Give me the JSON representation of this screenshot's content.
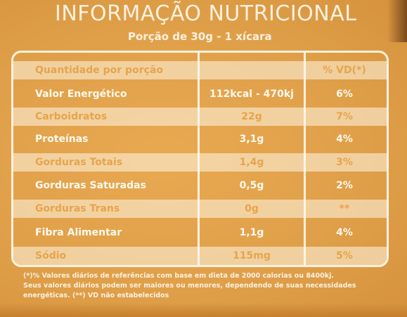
{
  "label": {
    "title": "INFORMAÇÃO NUTRICIONAL",
    "portion": "Porção de 30g - 1 xícara"
  },
  "table": {
    "headers": {
      "name": "Quantidade por porção",
      "vd": "% VD(*)"
    },
    "rows": [
      {
        "name": "Valor Energético",
        "qty": "112kcal - 470kj",
        "vd": "6%"
      },
      {
        "name": "Carboidratos",
        "qty": "22g",
        "vd": "7%"
      },
      {
        "name": "Proteínas",
        "qty": "3,1g",
        "vd": "4%"
      },
      {
        "name": "Gorduras Totais",
        "qty": "1,4g",
        "vd": "3%"
      },
      {
        "name": "Gorduras Saturadas",
        "qty": "0,5g",
        "vd": "2%"
      },
      {
        "name": "Gorduras Trans",
        "qty": "0g",
        "vd": "**"
      },
      {
        "name": "Fibra Alimentar",
        "qty": "1,1g",
        "vd": "4%"
      },
      {
        "name": "Sódio",
        "qty": "115mg",
        "vd": "5%"
      }
    ]
  },
  "footnote": {
    "line1": "(*)% Valores diários de referências com base em dieta de 2000 calorias ou 8400kj.",
    "line2": "Seus valores diários podem ser maiores ou menores, dependendo de suas necessidades",
    "line3": "energéticas. (**) VD não estabelecidos"
  },
  "colors": {
    "background": "#e2a24a",
    "text": "#fbf1df"
  }
}
